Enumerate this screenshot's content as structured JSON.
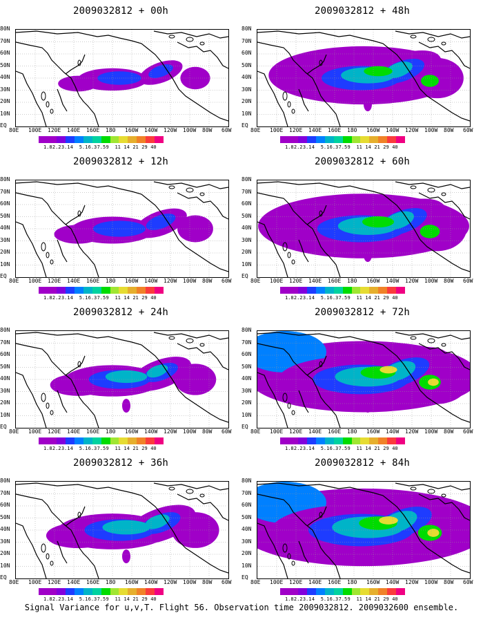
{
  "figure": {
    "caption": "Signal Variance for u,v,T. Flight 56. Observation time 2009032812. 2009032600 ensemble."
  },
  "axes": {
    "lat_labels": [
      "80N",
      "70N",
      "60N",
      "50N",
      "40N",
      "30N",
      "20N",
      "10N",
      "EQ"
    ],
    "lon_labels": [
      "80E",
      "100E",
      "120E",
      "140E",
      "160E",
      "180",
      "160W",
      "140W",
      "120W",
      "100W",
      "80W",
      "60W"
    ]
  },
  "colorbar": {
    "labels": [
      "1.8",
      "2.2",
      "3.1",
      "4",
      "5.1",
      "6.3",
      "7.5",
      "9",
      "11",
      "14",
      "21",
      "29",
      "40"
    ],
    "colors": [
      "#a000c8",
      "#8200dc",
      "#1e3cff",
      "#0080ff",
      "#00b4c8",
      "#00d2a0",
      "#00dc00",
      "#a0e632",
      "#e6dc32",
      "#e6af2d",
      "#f08228",
      "#fa3c3c",
      "#f00082"
    ]
  },
  "panels": [
    {
      "id": "p00",
      "title": "2009032812 + 00h",
      "level": 0
    },
    {
      "id": "p48",
      "title": "2009032812 + 48h",
      "level": 4
    },
    {
      "id": "p12",
      "title": "2009032812 + 12h",
      "level": 1
    },
    {
      "id": "p60",
      "title": "2009032812 + 60h",
      "level": 5
    },
    {
      "id": "p24",
      "title": "2009032812 + 24h",
      "level": 2
    },
    {
      "id": "p72",
      "title": "2009032812 + 72h",
      "level": 6
    },
    {
      "id": "p36",
      "title": "2009032812 + 36h",
      "level": 3
    },
    {
      "id": "p84",
      "title": "2009032812 + 84h",
      "level": 7
    }
  ]
}
